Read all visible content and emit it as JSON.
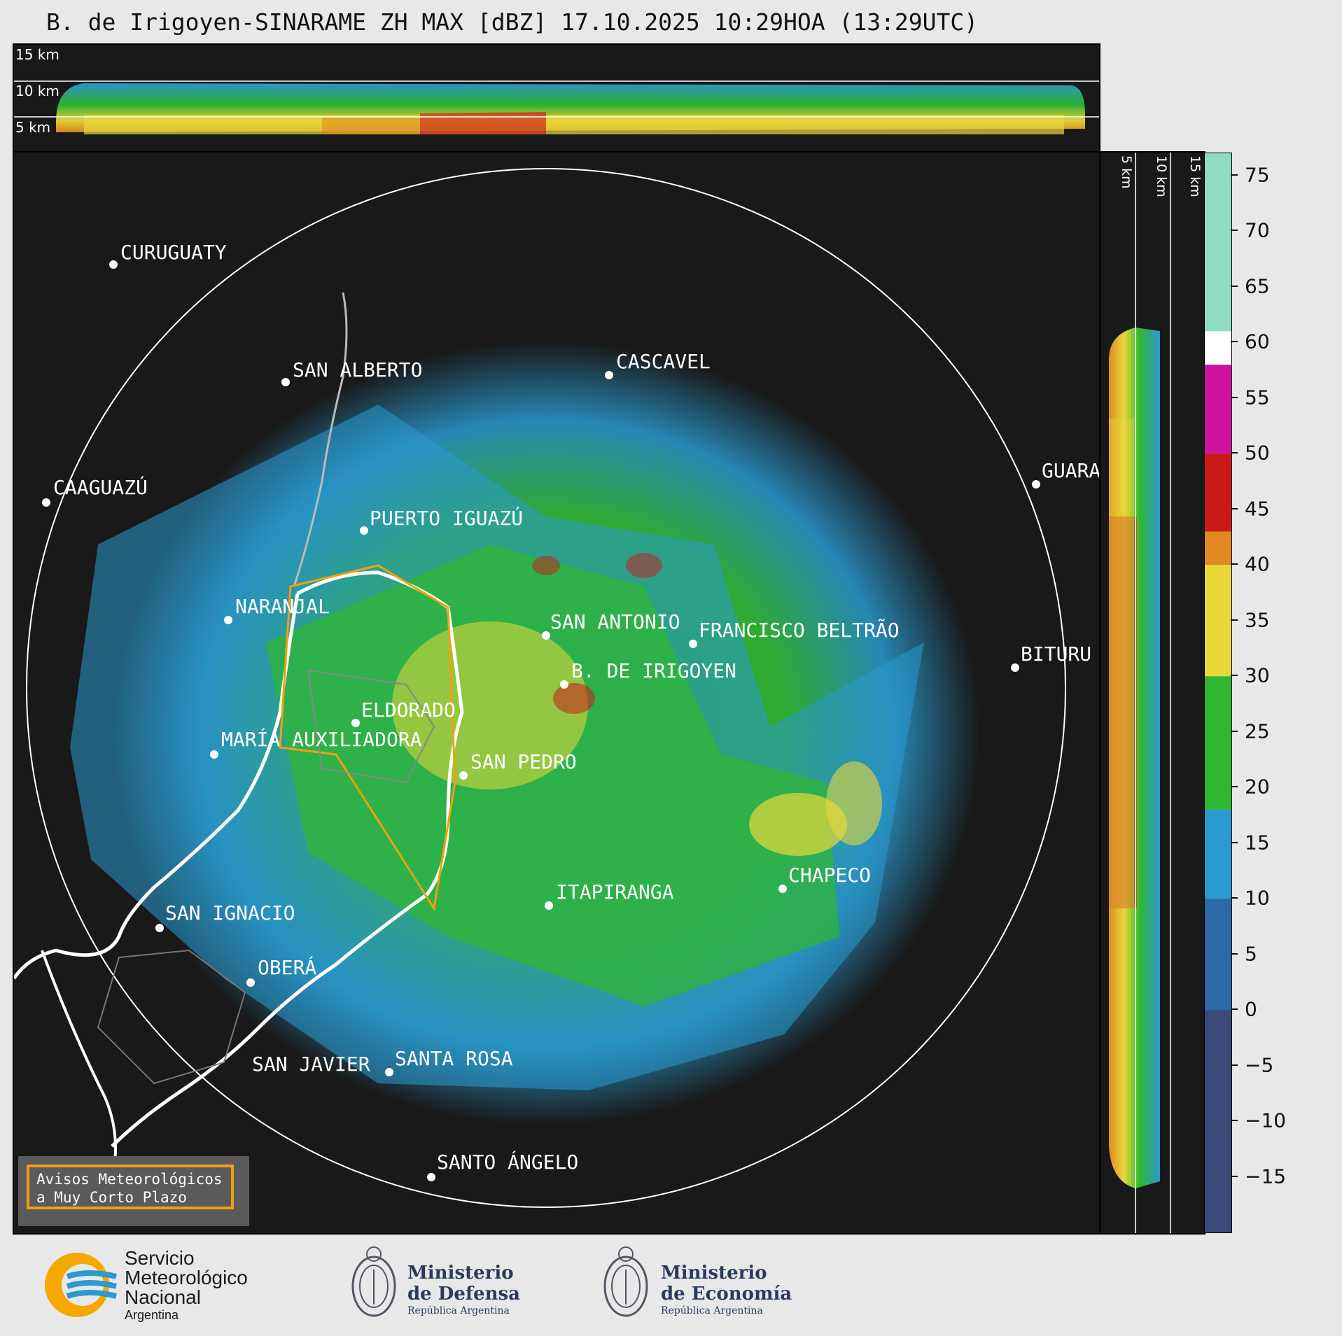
{
  "title": "B. de Irigoyen-SINARAME ZH MAX [dBZ] 17.10.2025 10:29HOA (13:29UTC)",
  "top_panel": {
    "levels": [
      "15 km",
      "10 km",
      "5 km"
    ]
  },
  "right_panel": {
    "levels": [
      "5 km",
      "10 km",
      "15 km"
    ]
  },
  "cities": [
    {
      "name": "CURUGUATY"
    },
    {
      "name": "SAN ALBERTO"
    },
    {
      "name": "CASCAVEL"
    },
    {
      "name": "CAAGUAZÚ"
    },
    {
      "name": "PUERTO IGUAZÚ"
    },
    {
      "name": "GUARA"
    },
    {
      "name": "NARANJAL"
    },
    {
      "name": "SAN ANTONIO"
    },
    {
      "name": "FRANCISCO BELTRÃO"
    },
    {
      "name": "BITURU"
    },
    {
      "name": "B. DE IRIGOYEN"
    },
    {
      "name": "ELDORADO"
    },
    {
      "name": "MARÍA AUXILIADORA"
    },
    {
      "name": "SAN PEDRO"
    },
    {
      "name": "CHAPECO"
    },
    {
      "name": "ITAPIRANGA"
    },
    {
      "name": "SAN IGNACIO"
    },
    {
      "name": "OBERÁ"
    },
    {
      "name": "SAN JAVIER"
    },
    {
      "name": "SANTA ROSA"
    },
    {
      "name": "SANTO ÁNGELO"
    }
  ],
  "colorbar": {
    "ticks": [
      75,
      70,
      65,
      60,
      55,
      50,
      45,
      40,
      35,
      30,
      25,
      20,
      15,
      10,
      5,
      0,
      -5,
      -10,
      -15
    ],
    "tick_labels": [
      "75",
      "70",
      "65",
      "60",
      "55",
      "50",
      "45",
      "40",
      "35",
      "30",
      "25",
      "20",
      "15",
      "10",
      "5",
      "0",
      "−5",
      "−10",
      "−15"
    ],
    "min": -20,
    "max": 77,
    "bands": [
      {
        "from": -20,
        "to": 0,
        "color": "#3a4a7a"
      },
      {
        "from": 0,
        "to": 10,
        "color": "#2a6aa8"
      },
      {
        "from": 10,
        "to": 18,
        "color": "#2a9ad0"
      },
      {
        "from": 18,
        "to": 30,
        "color": "#2fb82f"
      },
      {
        "from": 30,
        "to": 40,
        "color": "#e8d83a"
      },
      {
        "from": 40,
        "to": 43,
        "color": "#e08a20"
      },
      {
        "from": 43,
        "to": 50,
        "color": "#cc1a1a"
      },
      {
        "from": 50,
        "to": 58,
        "color": "#d010a0"
      },
      {
        "from": 58,
        "to": 61,
        "color": "#ffffff"
      },
      {
        "from": 61,
        "to": 77,
        "color": "#8fdcc0"
      }
    ]
  },
  "legend": {
    "line1": "Avisos Meteorológicos",
    "line2": "a Muy Corto Plazo"
  },
  "logos": {
    "smn": {
      "line1": "Servicio",
      "line2": "Meteorológico",
      "line3": "Nacional",
      "line4": "Argentina"
    },
    "defensa": {
      "line1": "Ministerio",
      "line2": "de Defensa",
      "line3": "República Argentina"
    },
    "economia": {
      "line1": "Ministerio",
      "line2": "de Economía",
      "line3": "República Argentina"
    }
  }
}
